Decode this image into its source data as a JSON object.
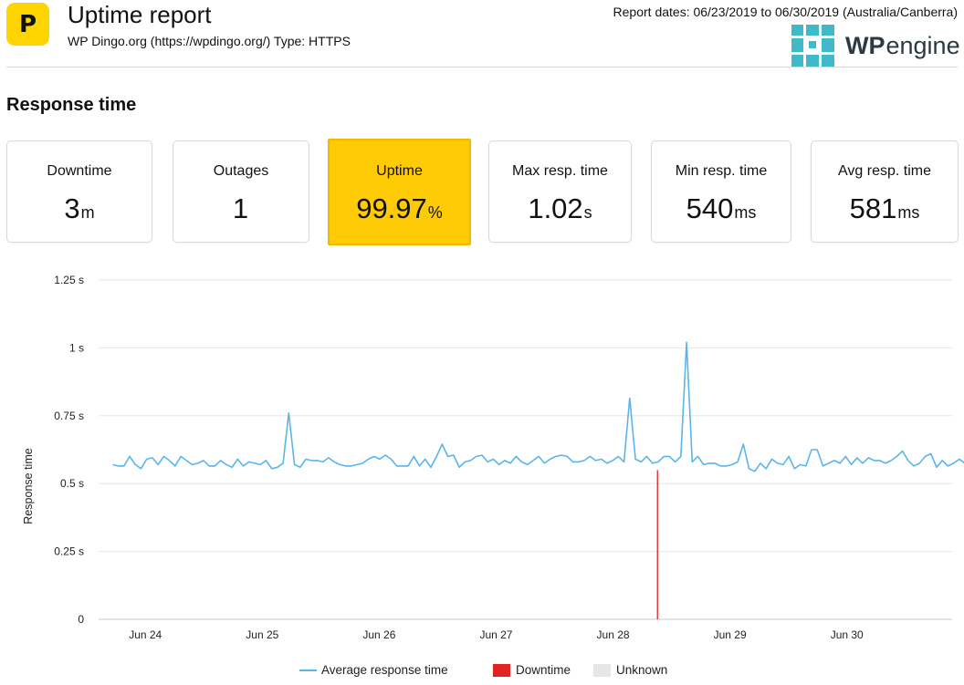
{
  "header": {
    "title": "Uptime report",
    "site_line": "WP Dingo.org (https://wpdingo.org/) Type: HTTPS",
    "report_dates": "Report dates: 06/23/2019 to 06/30/2019 (Australia/Canberra)",
    "app_logo_letter": "P",
    "app_logo_color": "#ffd400",
    "brand": {
      "wp": "WP",
      "engine": "engine",
      "mark_color": "#40bac8"
    }
  },
  "section_title": "Response time",
  "stats": [
    {
      "label": "Downtime",
      "value": "3",
      "unit": "m"
    },
    {
      "label": "Outages",
      "value": "1",
      "unit": ""
    },
    {
      "label": "Uptime",
      "value": "99.97",
      "unit": "%"
    },
    {
      "label": "Max resp. time",
      "value": "1.02",
      "unit": "s"
    },
    {
      "label": "Min resp. time",
      "value": "540",
      "unit": "ms"
    },
    {
      "label": "Avg resp. time",
      "value": "581",
      "unit": "ms"
    }
  ],
  "colors": {
    "highlight": "#ffcb05",
    "line": "#5bb4ea",
    "downtime": "#e02424",
    "unknown": "#e6e6e6"
  },
  "chart_data": {
    "type": "line",
    "ylabel": "Response time",
    "xlabel": "",
    "ylim": [
      0,
      1.25
    ],
    "yticks": [
      0,
      0.25,
      0.5,
      0.75,
      1,
      1.25
    ],
    "ytick_labels": [
      "0",
      "0.25 s",
      "0.5 s",
      "0.75 s",
      "1 s",
      "1.25 s"
    ],
    "xlim": [
      23.6,
      30.9
    ],
    "xticks": [
      24,
      25,
      26,
      27,
      28,
      29,
      30
    ],
    "xtick_labels": [
      "Jun 24",
      "Jun 25",
      "Jun 26",
      "Jun 27",
      "Jun 28",
      "Jun 29",
      "Jun 30"
    ],
    "grid": true,
    "legend": "bottom",
    "legend_items": [
      "Average response time",
      "Downtime",
      "Unknown"
    ],
    "series": [
      {
        "name": "Average response time",
        "x_start": 23.72,
        "x_step": 0.0486,
        "values": [
          0.57,
          0.565,
          0.565,
          0.6,
          0.57,
          0.555,
          0.59,
          0.595,
          0.57,
          0.6,
          0.585,
          0.565,
          0.6,
          0.585,
          0.57,
          0.575,
          0.585,
          0.565,
          0.565,
          0.585,
          0.57,
          0.56,
          0.59,
          0.565,
          0.58,
          0.575,
          0.57,
          0.585,
          0.555,
          0.56,
          0.575,
          0.76,
          0.57,
          0.56,
          0.59,
          0.585,
          0.585,
          0.58,
          0.595,
          0.58,
          0.57,
          0.565,
          0.565,
          0.57,
          0.575,
          0.59,
          0.6,
          0.59,
          0.605,
          0.59,
          0.565,
          0.565,
          0.565,
          0.6,
          0.565,
          0.59,
          0.56,
          0.6,
          0.645,
          0.6,
          0.605,
          0.56,
          0.58,
          0.585,
          0.6,
          0.605,
          0.58,
          0.59,
          0.57,
          0.585,
          0.575,
          0.6,
          0.58,
          0.57,
          0.585,
          0.6,
          0.575,
          0.59,
          0.6,
          0.605,
          0.6,
          0.58,
          0.58,
          0.585,
          0.6,
          0.585,
          0.59,
          0.575,
          0.585,
          0.6,
          0.58,
          0.815,
          0.59,
          0.58,
          0.6,
          0.575,
          0.58,
          0.6,
          0.6,
          0.58,
          0.6,
          1.02,
          0.58,
          0.6,
          0.57,
          0.575,
          0.575,
          0.565,
          0.565,
          0.57,
          0.58,
          0.645,
          0.555,
          0.545,
          0.575,
          0.555,
          0.59,
          0.575,
          0.57,
          0.6,
          0.555,
          0.57,
          0.565,
          0.625,
          0.625,
          0.565,
          0.575,
          0.585,
          0.575,
          0.6,
          0.57,
          0.595,
          0.575,
          0.595,
          0.585,
          0.585,
          0.575,
          0.585,
          0.6,
          0.62,
          0.585,
          0.565,
          0.575,
          0.6,
          0.61,
          0.56,
          0.585,
          0.565,
          0.575,
          0.59,
          0.575,
          0.6,
          0.61,
          0.565,
          0.57,
          0.555,
          0.675,
          0.565,
          0.585,
          0.575,
          0.56,
          0.6,
          0.61,
          0.57,
          0.59,
          0.565
        ]
      }
    ],
    "downtime_events": [
      {
        "x": 28.38
      }
    ]
  }
}
